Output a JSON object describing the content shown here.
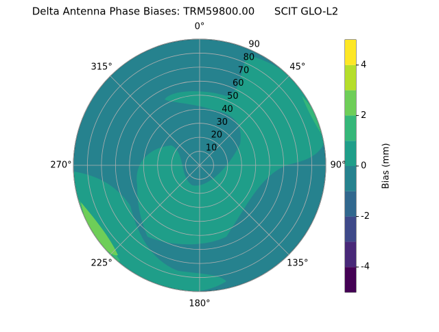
{
  "chart_data": {
    "type": "polar_contour",
    "title": "Delta Antenna Phase Biases: TRM59800.00      SCIT GLO-L2",
    "rlim": [
      0,
      90
    ],
    "rticks": [
      10,
      20,
      30,
      40,
      50,
      60,
      70,
      80,
      90
    ],
    "thetaticks": [
      {
        "value": 0,
        "label": "0°"
      },
      {
        "value": 45,
        "label": "45°"
      },
      {
        "value": 90,
        "label": "90°"
      },
      {
        "value": 135,
        "label": "135°"
      },
      {
        "value": 180,
        "label": "180°"
      },
      {
        "value": 225,
        "label": "225°"
      },
      {
        "value": 270,
        "label": "270°"
      },
      {
        "value": 315,
        "label": "315°"
      }
    ],
    "grid": true,
    "colorbar": {
      "label": "Bias (mm)",
      "clim": [
        -5,
        5
      ],
      "ticks": [
        -4,
        -2,
        0,
        2,
        4
      ],
      "levels": [
        -5,
        -4,
        -3,
        -2,
        -1,
        0,
        1,
        2,
        3,
        4,
        5
      ],
      "colors": [
        "#440154",
        "#482878",
        "#3e4989",
        "#31688e",
        "#26828e",
        "#1f9e89",
        "#35b779",
        "#6ece58",
        "#b5de2b",
        "#fde725"
      ]
    }
  }
}
